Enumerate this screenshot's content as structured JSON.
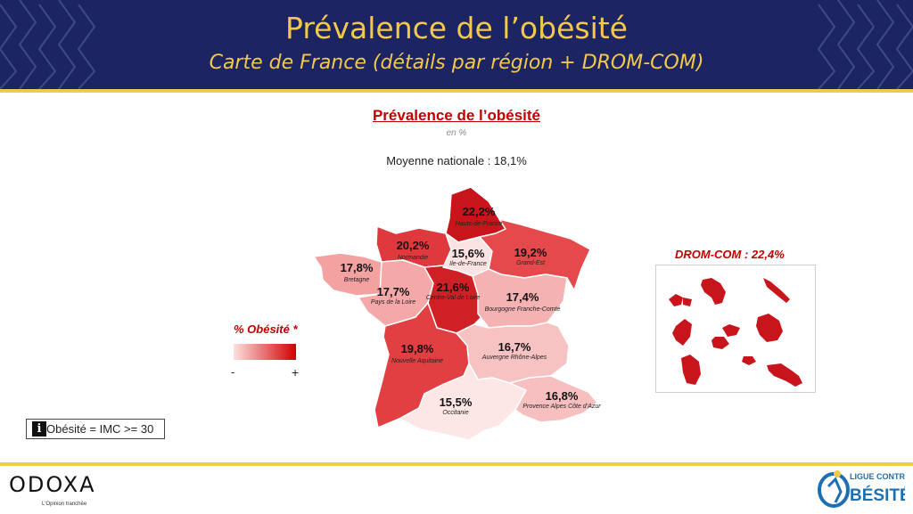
{
  "header": {
    "title": "Prévalence de l’obésité",
    "subtitle": "Carte de France (détails par région + DROM-COM)"
  },
  "map": {
    "title": "Prévalence de l’obésité",
    "unit": "en %",
    "national_average": "Moyenne nationale : 18,1%",
    "regions": [
      {
        "id": "hauts-de-france",
        "name": "Hauts-de-France",
        "value_label": "22,2%",
        "value": 22.2,
        "color": "#c8151b"
      },
      {
        "id": "normandie",
        "name": "Normandie",
        "value_label": "20,2%",
        "value": 20.2,
        "color": "#e0393d"
      },
      {
        "id": "ile-de-france",
        "name": "Ile-de-France",
        "value_label": "15,6%",
        "value": 15.6,
        "color": "#fbe3e3"
      },
      {
        "id": "grand-est",
        "name": "Grand-Est",
        "value_label": "19,2%",
        "value": 19.2,
        "color": "#e5494c"
      },
      {
        "id": "bretagne",
        "name": "Bretagne",
        "value_label": "17,8%",
        "value": 17.8,
        "color": "#f3a1a1"
      },
      {
        "id": "pays-de-la-loire",
        "name": "Pays de la Loire",
        "value_label": "17,7%",
        "value": 17.7,
        "color": "#f4a8a8"
      },
      {
        "id": "centre-val-de-loire",
        "name": "Centre-Val de Loire",
        "value_label": "21,6%",
        "value": 21.6,
        "color": "#cf2025"
      },
      {
        "id": "bourgogne-franche-comte",
        "name": "Bourgogne Franche-Comté",
        "value_label": "17,4%",
        "value": 17.4,
        "color": "#f5b2b2"
      },
      {
        "id": "nouvelle-aquitaine",
        "name": "Nouvelle Aquitaine",
        "value_label": "19,8%",
        "value": 19.8,
        "color": "#e23f43"
      },
      {
        "id": "auvergne-rhone-alpes",
        "name": "Auvergne Rhône-Alpes",
        "value_label": "16,7%",
        "value": 16.7,
        "color": "#f7c2c2"
      },
      {
        "id": "occitanie",
        "name": "Occitanie",
        "value_label": "15,5%",
        "value": 15.5,
        "color": "#fce6e6"
      },
      {
        "id": "provence-alpes-cote-dazur",
        "name": "Provence Alpes Côte d’Azur",
        "value_label": "16,8%",
        "value": 16.8,
        "color": "#f7bfbf"
      }
    ]
  },
  "legend": {
    "title": "% Obésité *",
    "min_label": "-",
    "max_label": "+",
    "color_low": "#fde0e0",
    "color_high": "#d10000"
  },
  "drom": {
    "title": "DROM-COM : 22,4%",
    "color": "#c8151b"
  },
  "note": {
    "icon": "info-icon",
    "text": "Obésité = IMC >= 30"
  },
  "footer": {
    "odoxa_word": "ODOXA",
    "odoxa_tagline": "L'Opinion tranchée",
    "ligue_top": "LIGUE CONTRE",
    "ligue_word": "BÉSITÉ"
  },
  "colors": {
    "header_bg": "#1c2461",
    "gold": "#f2c94c",
    "accent_red": "#c00000"
  }
}
